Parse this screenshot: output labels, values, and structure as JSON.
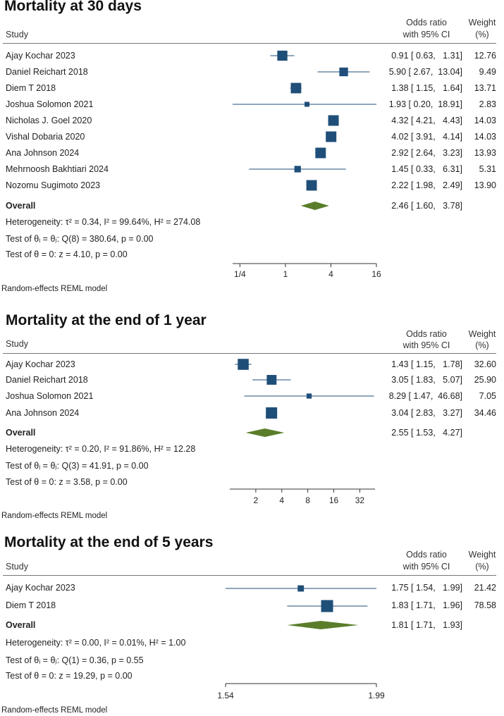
{
  "header": {
    "study_label": "Study",
    "or_label_1": "Odds ratio",
    "or_label_2": "with 95% CI",
    "weight_label_1": "Weight",
    "weight_label_2": "(%)"
  },
  "colors": {
    "box": "#1f4e79",
    "diamond": "#5a7d2a",
    "line": "#1f4e79"
  },
  "chart_data": [
    {
      "type": "forest",
      "title": "Mortality at 30 days",
      "scale": "log",
      "xlim": [
        0.2,
        16
      ],
      "ticks": [
        0.25,
        1,
        4,
        16
      ],
      "tick_labels": [
        "1/4",
        "1",
        "4",
        "16"
      ],
      "studies": [
        {
          "name": "Ajay Kochar 2023",
          "or": 0.91,
          "lo": 0.63,
          "hi": 1.31,
          "ci_text": "0.91 [ 0.63,   1.31]",
          "weight": "12.76"
        },
        {
          "name": "Daniel Reichart 2018",
          "or": 5.9,
          "lo": 2.67,
          "hi": 13.04,
          "ci_text": "5.90 [ 2.67,  13.04]",
          "weight": "9.49"
        },
        {
          "name": "Diem T 2018",
          "or": 1.38,
          "lo": 1.15,
          "hi": 1.64,
          "ci_text": "1.38 [ 1.15,   1.64]",
          "weight": "13.71"
        },
        {
          "name": "Joshua Solomon 2021",
          "or": 1.93,
          "lo": 0.2,
          "hi": 18.91,
          "ci_text": "1.93 [ 0.20,  18.91]",
          "weight": "2.83"
        },
        {
          "name": "Nicholas J. Goel 2020",
          "or": 4.32,
          "lo": 4.21,
          "hi": 4.43,
          "ci_text": "4.32 [ 4.21,   4.43]",
          "weight": "14.03"
        },
        {
          "name": "Vishal Dobaria 2020",
          "or": 4.02,
          "lo": 3.91,
          "hi": 4.14,
          "ci_text": "4.02 [ 3.91,   4.14]",
          "weight": "14.03"
        },
        {
          "name": "Ana Johnson 2024",
          "or": 2.92,
          "lo": 2.64,
          "hi": 3.23,
          "ci_text": "2.92 [ 2.64,   3.23]",
          "weight": "13.93"
        },
        {
          "name": "Mehrnoosh Bakhtiari 2024",
          "or": 1.45,
          "lo": 0.33,
          "hi": 6.31,
          "ci_text": "1.45 [ 0.33,   6.31]",
          "weight": "5.31"
        },
        {
          "name": "Nozomu Sugimoto 2023",
          "or": 2.22,
          "lo": 1.98,
          "hi": 2.49,
          "ci_text": "2.22 [ 1.98,   2.49]",
          "weight": "13.90"
        }
      ],
      "overall": {
        "label": "Overall",
        "or": 2.46,
        "lo": 1.6,
        "hi": 3.78,
        "ci_text": "2.46 [ 1.60,   3.78]"
      },
      "heterogeneity": "Heterogeneity: τ² = 0.34, I² = 99.64%, H² = 274.08",
      "test_homog": "Test of θᵢ = θⱼ: Q(8) = 380.64, p = 0.00",
      "test_zero": "Test of θ = 0: z = 4.10, p = 0.00",
      "model": "Random-effects REML model"
    },
    {
      "type": "forest",
      "title": "Mortality at the end of 1 year",
      "scale": "log",
      "xlim": [
        1,
        48
      ],
      "ticks": [
        2,
        4,
        8,
        16,
        32
      ],
      "tick_labels": [
        "2",
        "4",
        "8",
        "16",
        "32"
      ],
      "studies": [
        {
          "name": "Ajay Kochar 2023",
          "or": 1.43,
          "lo": 1.15,
          "hi": 1.78,
          "ci_text": "1.43 [ 1.15,   1.78]",
          "weight": "32.60"
        },
        {
          "name": "Daniel Reichart 2018",
          "or": 3.05,
          "lo": 1.83,
          "hi": 5.07,
          "ci_text": "3.05 [ 1.83,   5.07]",
          "weight": "25.90"
        },
        {
          "name": "Joshua Solomon 2021",
          "or": 8.29,
          "lo": 1.47,
          "hi": 46.68,
          "ci_text": "8.29 [ 1.47,  46.68]",
          "weight": "7.05"
        },
        {
          "name": "Ana Johnson 2024",
          "or": 3.04,
          "lo": 2.83,
          "hi": 3.27,
          "ci_text": "3.04 [ 2.83,   3.27]",
          "weight": "34.46"
        }
      ],
      "overall": {
        "label": "Overall",
        "or": 2.55,
        "lo": 1.53,
        "hi": 4.27,
        "ci_text": "2.55 [ 1.53,   4.27]"
      },
      "heterogeneity": "Heterogeneity: τ² = 0.20, I² = 91.86%, H² = 12.28",
      "test_homog": "Test of θᵢ = θⱼ: Q(3) = 41.91, p = 0.00",
      "test_zero": "Test of θ = 0: z = 3.58, p = 0.00",
      "model": "Random-effects REML model"
    },
    {
      "type": "forest",
      "title": "Mortality at the end of 5 years",
      "scale": "log",
      "xlim": [
        1.54,
        1.99
      ],
      "ticks": [
        1.54,
        1.99
      ],
      "tick_labels": [
        "1.54",
        "1.99"
      ],
      "studies": [
        {
          "name": "Ajay Kochar 2023",
          "or": 1.75,
          "lo": 1.54,
          "hi": 1.99,
          "ci_text": "1.75 [ 1.54,   1.99]",
          "weight": "21.42"
        },
        {
          "name": "Diem T 2018",
          "or": 1.83,
          "lo": 1.71,
          "hi": 1.96,
          "ci_text": "1.83 [ 1.71,   1.96]",
          "weight": "78.58"
        }
      ],
      "overall": {
        "label": "Overall",
        "or": 1.81,
        "lo": 1.71,
        "hi": 1.93,
        "ci_text": "1.81 [ 1.71,   1.93]"
      },
      "heterogeneity": "Heterogeneity: τ² = 0.00, I² = 0.01%, H² = 1.00",
      "test_homog": "Test of θᵢ = θⱼ: Q(1) = 0.36, p = 0.55",
      "test_zero": "Test of θ = 0: z = 19.29, p = 0.00",
      "model": "Random-effects REML model"
    }
  ]
}
